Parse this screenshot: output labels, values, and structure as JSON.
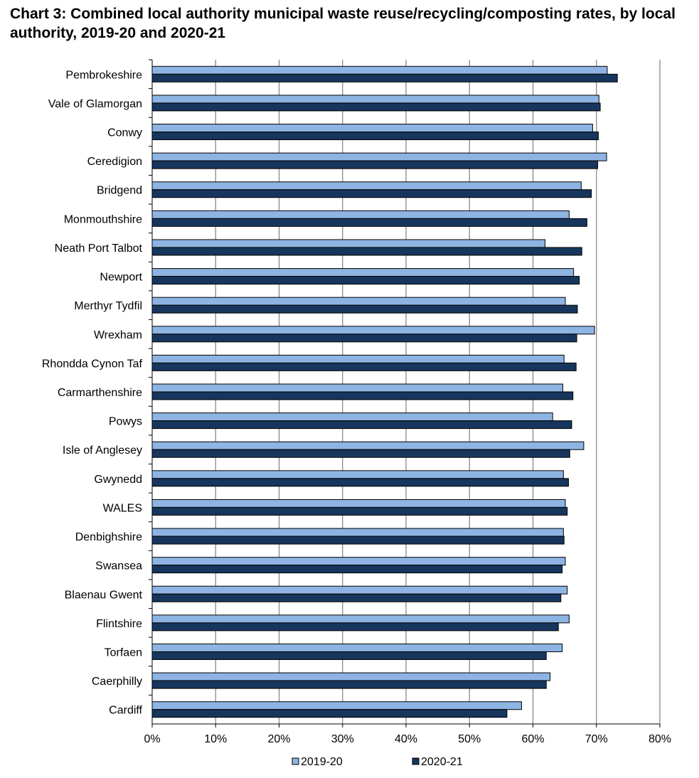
{
  "chart_data": {
    "type": "bar",
    "orientation": "horizontal",
    "title": "Chart 3: Combined local authority municipal waste reuse/recycling/composting rates, by local authority, 2019-20 and 2020-21",
    "xlabel": "",
    "ylabel": "",
    "xlim": [
      0,
      80
    ],
    "x_ticks": [
      "0%",
      "10%",
      "20%",
      "30%",
      "40%",
      "50%",
      "60%",
      "70%",
      "80%"
    ],
    "grid": "vertical gridlines",
    "legend_position": "bottom",
    "categories": [
      "Pembrokeshire",
      "Vale of Glamorgan",
      "Conwy",
      "Ceredigion",
      "Bridgend",
      "Monmouthshire",
      "Neath Port Talbot",
      "Newport",
      "Merthyr Tydfil",
      "Wrexham",
      "Rhondda Cynon Taf",
      "Carmarthenshire",
      "Powys",
      "Isle of Anglesey",
      "Gwynedd",
      "WALES",
      "Denbighshire",
      "Swansea",
      "Blaenau Gwent",
      "Flintshire",
      "Torfaen",
      "Caerphilly",
      "Cardiff"
    ],
    "series": [
      {
        "name": "2019-20",
        "color": "#8eb4e3",
        "values": [
          71.7,
          70.4,
          69.4,
          71.6,
          67.6,
          65.7,
          61.9,
          66.4,
          65.1,
          69.7,
          64.9,
          64.7,
          63.1,
          68.0,
          64.8,
          65.1,
          64.8,
          65.1,
          65.4,
          65.7,
          64.6,
          62.7,
          58.2
        ]
      },
      {
        "name": "2020-21",
        "color": "#17365d",
        "values": [
          73.3,
          70.6,
          70.3,
          70.2,
          69.2,
          68.5,
          67.7,
          67.3,
          67.0,
          66.9,
          66.8,
          66.3,
          66.1,
          65.8,
          65.6,
          65.4,
          64.9,
          64.6,
          64.4,
          64.0,
          62.1,
          62.1,
          55.9
        ]
      }
    ]
  }
}
